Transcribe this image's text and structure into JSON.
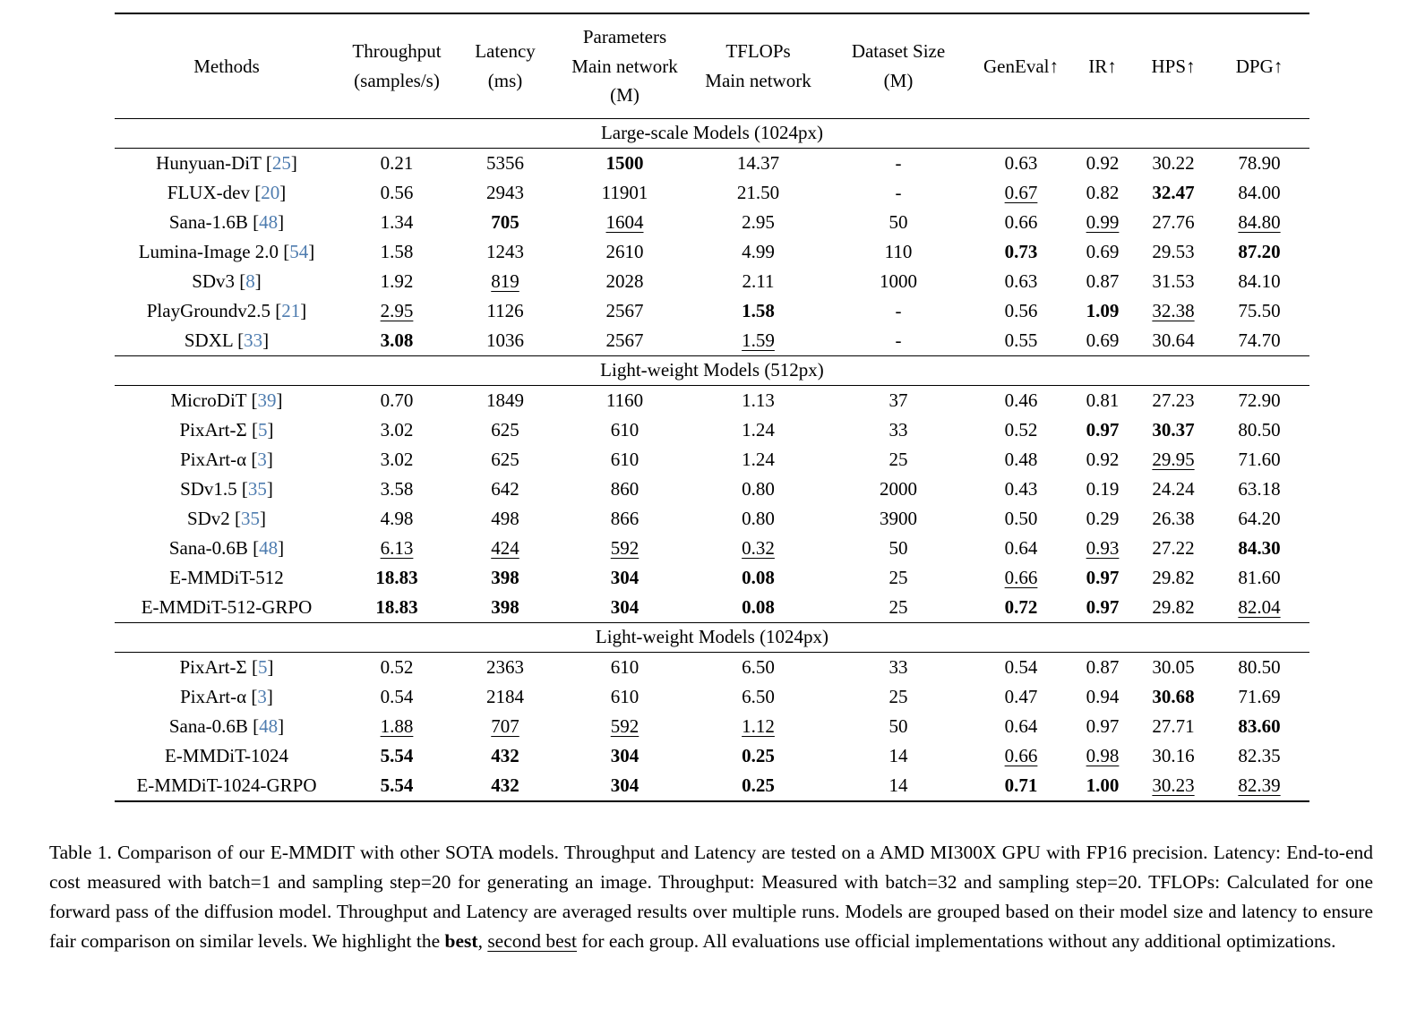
{
  "colors": {
    "citation": "#4E7CAF",
    "text": "#000000",
    "background": "#ffffff"
  },
  "table": {
    "columns": [
      {
        "name": "methods",
        "lines": [
          "Methods"
        ]
      },
      {
        "name": "throughput",
        "lines": [
          "Throughput",
          "(samples/s)"
        ]
      },
      {
        "name": "latency",
        "lines": [
          "Latency",
          "(ms)"
        ]
      },
      {
        "name": "parameters",
        "lines": [
          "Parameters",
          "Main network",
          "(M)"
        ]
      },
      {
        "name": "tflops",
        "lines": [
          "TFLOPs",
          "Main network"
        ]
      },
      {
        "name": "dataset-size",
        "lines": [
          "Dataset Size",
          "(M)"
        ]
      },
      {
        "name": "geneval",
        "lines": [
          "GenEval↑"
        ]
      },
      {
        "name": "ir",
        "lines": [
          "IR↑"
        ]
      },
      {
        "name": "hps",
        "lines": [
          "HPS↑"
        ]
      },
      {
        "name": "dpg",
        "lines": [
          "DPG↑"
        ]
      }
    ],
    "sections": [
      {
        "title": "Large-scale Models (1024px)",
        "rows": [
          {
            "method": "Hunyuan-DiT",
            "cite": "25",
            "cells": [
              [
                "0.21",
                ""
              ],
              [
                "5356",
                ""
              ],
              [
                "1500",
                "b"
              ],
              [
                "14.37",
                ""
              ],
              [
                "-",
                ""
              ],
              [
                "0.63",
                ""
              ],
              [
                "0.92",
                ""
              ],
              [
                "30.22",
                ""
              ],
              [
                "78.90",
                ""
              ]
            ]
          },
          {
            "method": "FLUX-dev",
            "cite": "20",
            "cells": [
              [
                "0.56",
                ""
              ],
              [
                "2943",
                ""
              ],
              [
                "11901",
                ""
              ],
              [
                "21.50",
                ""
              ],
              [
                "-",
                ""
              ],
              [
                "0.67",
                "u"
              ],
              [
                "0.82",
                ""
              ],
              [
                "32.47",
                "b"
              ],
              [
                "84.00",
                ""
              ]
            ]
          },
          {
            "method": "Sana-1.6B",
            "cite": "48",
            "cells": [
              [
                "1.34",
                ""
              ],
              [
                "705",
                "b"
              ],
              [
                "1604",
                "u"
              ],
              [
                "2.95",
                ""
              ],
              [
                "50",
                ""
              ],
              [
                "0.66",
                ""
              ],
              [
                "0.99",
                "u"
              ],
              [
                "27.76",
                ""
              ],
              [
                "84.80",
                "u"
              ]
            ]
          },
          {
            "method": "Lumina-Image 2.0",
            "cite": "54",
            "cells": [
              [
                "1.58",
                ""
              ],
              [
                "1243",
                ""
              ],
              [
                "2610",
                ""
              ],
              [
                "4.99",
                ""
              ],
              [
                "110",
                ""
              ],
              [
                "0.73",
                "b"
              ],
              [
                "0.69",
                ""
              ],
              [
                "29.53",
                ""
              ],
              [
                "87.20",
                "b"
              ]
            ]
          },
          {
            "method": "SDv3",
            "cite": "8",
            "cells": [
              [
                "1.92",
                ""
              ],
              [
                "819",
                "u"
              ],
              [
                "2028",
                ""
              ],
              [
                "2.11",
                ""
              ],
              [
                "1000",
                ""
              ],
              [
                "0.63",
                ""
              ],
              [
                "0.87",
                ""
              ],
              [
                "31.53",
                ""
              ],
              [
                "84.10",
                ""
              ]
            ]
          },
          {
            "method": "PlayGroundv2.5",
            "cite": "21",
            "cells": [
              [
                "2.95",
                "u"
              ],
              [
                "1126",
                ""
              ],
              [
                "2567",
                ""
              ],
              [
                "1.58",
                "b"
              ],
              [
                "-",
                ""
              ],
              [
                "0.56",
                ""
              ],
              [
                "1.09",
                "b"
              ],
              [
                "32.38",
                "u"
              ],
              [
                "75.50",
                ""
              ]
            ]
          },
          {
            "method": "SDXL",
            "cite": "33",
            "cells": [
              [
                "3.08",
                "b"
              ],
              [
                "1036",
                ""
              ],
              [
                "2567",
                ""
              ],
              [
                "1.59",
                "u"
              ],
              [
                "-",
                ""
              ],
              [
                "0.55",
                ""
              ],
              [
                "0.69",
                ""
              ],
              [
                "30.64",
                ""
              ],
              [
                "74.70",
                ""
              ]
            ]
          }
        ]
      },
      {
        "title": "Light-weight Models (512px)",
        "rows": [
          {
            "method": "MicroDiT",
            "cite": "39",
            "cells": [
              [
                "0.70",
                ""
              ],
              [
                "1849",
                ""
              ],
              [
                "1160",
                ""
              ],
              [
                "1.13",
                ""
              ],
              [
                "37",
                ""
              ],
              [
                "0.46",
                ""
              ],
              [
                "0.81",
                ""
              ],
              [
                "27.23",
                ""
              ],
              [
                "72.90",
                ""
              ]
            ]
          },
          {
            "method": "PixArt-Σ",
            "cite": "5",
            "cells": [
              [
                "3.02",
                ""
              ],
              [
                "625",
                ""
              ],
              [
                "610",
                ""
              ],
              [
                "1.24",
                ""
              ],
              [
                "33",
                ""
              ],
              [
                "0.52",
                ""
              ],
              [
                "0.97",
                "b"
              ],
              [
                "30.37",
                "b"
              ],
              [
                "80.50",
                ""
              ]
            ]
          },
          {
            "method": "PixArt-α",
            "cite": "3",
            "cells": [
              [
                "3.02",
                ""
              ],
              [
                "625",
                ""
              ],
              [
                "610",
                ""
              ],
              [
                "1.24",
                ""
              ],
              [
                "25",
                ""
              ],
              [
                "0.48",
                ""
              ],
              [
                "0.92",
                ""
              ],
              [
                "29.95",
                "u"
              ],
              [
                "71.60",
                ""
              ]
            ]
          },
          {
            "method": "SDv1.5",
            "cite": "35",
            "cells": [
              [
                "3.58",
                ""
              ],
              [
                "642",
                ""
              ],
              [
                "860",
                ""
              ],
              [
                "0.80",
                ""
              ],
              [
                "2000",
                ""
              ],
              [
                "0.43",
                ""
              ],
              [
                "0.19",
                ""
              ],
              [
                "24.24",
                ""
              ],
              [
                "63.18",
                ""
              ]
            ]
          },
          {
            "method": "SDv2",
            "cite": "35",
            "cells": [
              [
                "4.98",
                ""
              ],
              [
                "498",
                ""
              ],
              [
                "866",
                ""
              ],
              [
                "0.80",
                ""
              ],
              [
                "3900",
                ""
              ],
              [
                "0.50",
                ""
              ],
              [
                "0.29",
                ""
              ],
              [
                "26.38",
                ""
              ],
              [
                "64.20",
                ""
              ]
            ]
          },
          {
            "method": "Sana-0.6B",
            "cite": "48",
            "cells": [
              [
                "6.13",
                "u"
              ],
              [
                "424",
                "u"
              ],
              [
                "592",
                "u"
              ],
              [
                "0.32",
                "u"
              ],
              [
                "50",
                ""
              ],
              [
                "0.64",
                ""
              ],
              [
                "0.93",
                "u"
              ],
              [
                "27.22",
                ""
              ],
              [
                "84.30",
                "b"
              ]
            ]
          },
          {
            "method": "E-MMDiT-512",
            "cite": "",
            "cells": [
              [
                "18.83",
                "b"
              ],
              [
                "398",
                "b"
              ],
              [
                "304",
                "b"
              ],
              [
                "0.08",
                "b"
              ],
              [
                "25",
                ""
              ],
              [
                "0.66",
                "u"
              ],
              [
                "0.97",
                "b"
              ],
              [
                "29.82",
                ""
              ],
              [
                "81.60",
                ""
              ]
            ]
          },
          {
            "method": "E-MMDiT-512-GRPO",
            "cite": "",
            "cells": [
              [
                "18.83",
                "b"
              ],
              [
                "398",
                "b"
              ],
              [
                "304",
                "b"
              ],
              [
                "0.08",
                "b"
              ],
              [
                "25",
                ""
              ],
              [
                "0.72",
                "b"
              ],
              [
                "0.97",
                "b"
              ],
              [
                "29.82",
                ""
              ],
              [
                "82.04",
                "u"
              ]
            ]
          }
        ]
      },
      {
        "title": "Light-weight Models (1024px)",
        "rows": [
          {
            "method": "PixArt-Σ",
            "cite": "5",
            "cells": [
              [
                "0.52",
                ""
              ],
              [
                "2363",
                ""
              ],
              [
                "610",
                ""
              ],
              [
                "6.50",
                ""
              ],
              [
                "33",
                ""
              ],
              [
                "0.54",
                ""
              ],
              [
                "0.87",
                ""
              ],
              [
                "30.05",
                ""
              ],
              [
                "80.50",
                ""
              ]
            ]
          },
          {
            "method": "PixArt-α",
            "cite": "3",
            "cells": [
              [
                "0.54",
                ""
              ],
              [
                "2184",
                ""
              ],
              [
                "610",
                ""
              ],
              [
                "6.50",
                ""
              ],
              [
                "25",
                ""
              ],
              [
                "0.47",
                ""
              ],
              [
                "0.94",
                ""
              ],
              [
                "30.68",
                "b"
              ],
              [
                "71.69",
                ""
              ]
            ]
          },
          {
            "method": "Sana-0.6B",
            "cite": "48",
            "cells": [
              [
                "1.88",
                "u"
              ],
              [
                "707",
                "u"
              ],
              [
                "592",
                "u"
              ],
              [
                "1.12",
                "u"
              ],
              [
                "50",
                ""
              ],
              [
                "0.64",
                ""
              ],
              [
                "0.97",
                ""
              ],
              [
                "27.71",
                ""
              ],
              [
                "83.60",
                "b"
              ]
            ]
          },
          {
            "method": "E-MMDiT-1024",
            "cite": "",
            "cells": [
              [
                "5.54",
                "b"
              ],
              [
                "432",
                "b"
              ],
              [
                "304",
                "b"
              ],
              [
                "0.25",
                "b"
              ],
              [
                "14",
                ""
              ],
              [
                "0.66",
                "u"
              ],
              [
                "0.98",
                "u"
              ],
              [
                "30.16",
                ""
              ],
              [
                "82.35",
                ""
              ]
            ]
          },
          {
            "method": "E-MMDiT-1024-GRPO",
            "cite": "",
            "cells": [
              [
                "5.54",
                "b"
              ],
              [
                "432",
                "b"
              ],
              [
                "304",
                "b"
              ],
              [
                "0.25",
                "b"
              ],
              [
                "14",
                ""
              ],
              [
                "0.71",
                "b"
              ],
              [
                "1.00",
                "b"
              ],
              [
                "30.23",
                "u"
              ],
              [
                "82.39",
                "u"
              ]
            ]
          }
        ]
      }
    ]
  },
  "caption": {
    "parts": [
      {
        "t": "Table 1. Comparison of our E-MMDIT with other SOTA models. Throughput and Latency are tested on a AMD MI300X GPU with FP16 precision. Latency: End-to-end cost measured with batch=1 and sampling step=20 for generating an image. Throughput: Measured with batch=32 and sampling step=20. TFLOPs: Calculated for one forward pass of the diffusion model. Throughput and Latency are averaged results over multiple runs. Models are grouped based on their model size and latency to ensure fair comparison on similar levels. We highlight the ",
        "s": ""
      },
      {
        "t": "best",
        "s": "b"
      },
      {
        "t": ", ",
        "s": ""
      },
      {
        "t": "second best",
        "s": "u"
      },
      {
        "t": " for each group. All evaluations use official implementations without any additional optimizations.",
        "s": ""
      }
    ]
  }
}
